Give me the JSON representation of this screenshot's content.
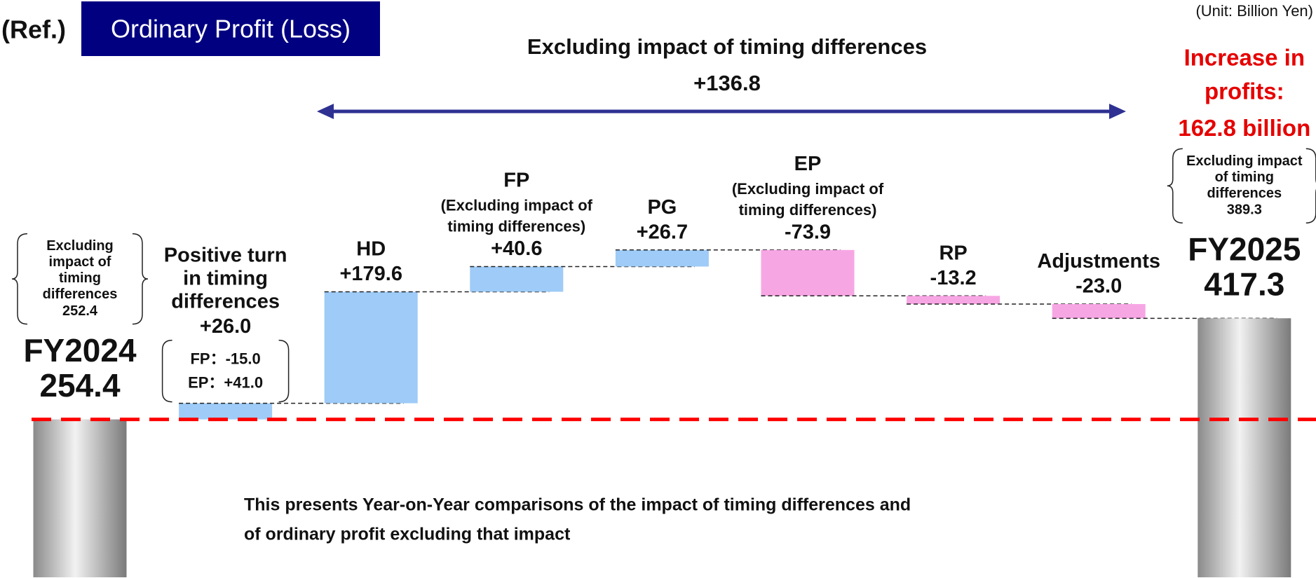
{
  "chart_data": {
    "type": "waterfall",
    "ref_label": "(Ref.)",
    "title": "Ordinary Profit (Loss)",
    "unit": "(Unit: Billion Yen)",
    "heading": "Excluding impact of timing differences",
    "heading_value": "+136.8",
    "increase_note": [
      "Increase in profits:",
      "162.8 billion"
    ],
    "categories": [
      "FY2024",
      "Positive turn in timing differences",
      "HD",
      "FP",
      "PG",
      "EP",
      "RP",
      "Adjustments",
      "FY2025"
    ],
    "category_notes": [
      null,
      null,
      null,
      "(Excluding impact of timing differences)",
      null,
      "(Excluding impact of timing differences)",
      null,
      null,
      null
    ],
    "category_breakdown": [
      null,
      [
        "FP：-15.0",
        "EP：+41.0"
      ],
      null,
      null,
      null,
      null,
      null,
      null,
      null
    ],
    "values": [
      254.4,
      26.0,
      179.6,
      40.6,
      26.7,
      -73.9,
      -13.2,
      -23.0,
      417.3
    ],
    "value_labels": [
      "254.4",
      "+26.0",
      "+179.6",
      "+40.6",
      "+26.7",
      "-73.9",
      "-13.2",
      "-23.0",
      "417.3"
    ],
    "measures": [
      "total",
      "relative",
      "relative",
      "relative",
      "relative",
      "relative",
      "relative",
      "relative",
      "total"
    ],
    "increase_color": "#9ecbf7",
    "decrease_color": "#f7a6e4",
    "totals_excluding_timing": {
      "label": "Excluding impact of timing differences",
      "values": [
        252.4,
        389.3
      ]
    },
    "footnote": [
      "This presents Year-on-Year comparisons of the impact of timing differences and",
      "of ordinary profit excluding that impact"
    ]
  }
}
